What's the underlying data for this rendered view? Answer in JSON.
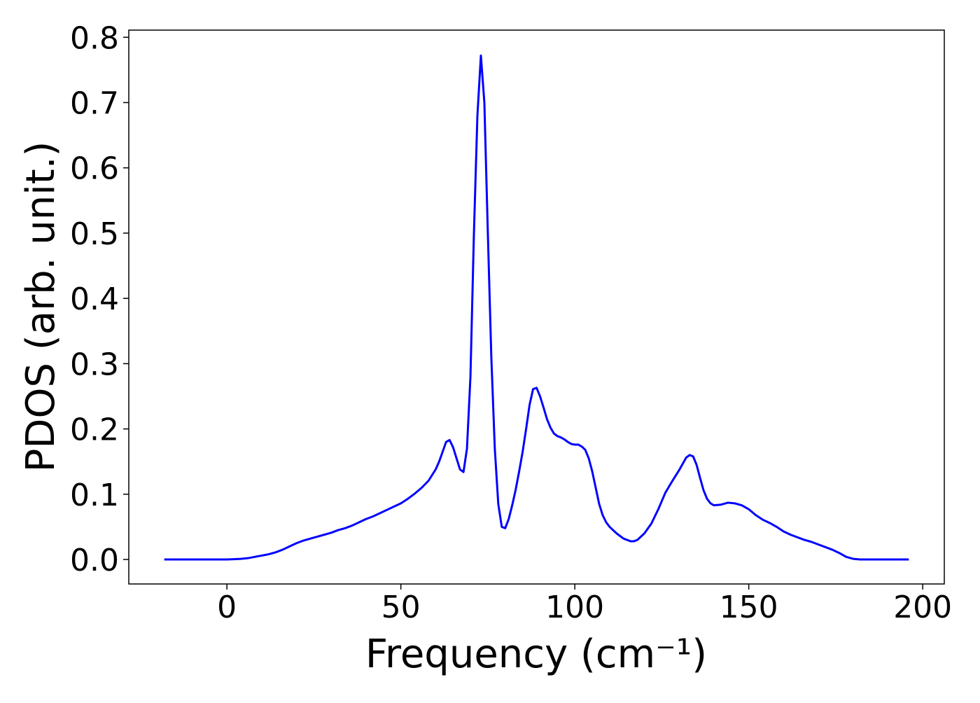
{
  "chart_data": {
    "type": "line",
    "xlabel": "Frequency (cm⁻¹)",
    "ylabel": "PDOS (arb. unit.)",
    "xlim": [
      -28.2,
      206.2
    ],
    "ylim": [
      -0.0375,
      0.811
    ],
    "xticks": [
      0,
      50,
      100,
      150,
      200
    ],
    "yticks": [
      {
        "value": 0,
        "label": "0.0"
      },
      0.1,
      0.2,
      0.3,
      0.4,
      0.5,
      0.6,
      0.7,
      0.8
    ],
    "grid": false,
    "x": [
      -18,
      -14,
      -10,
      -6,
      -2,
      0,
      2,
      4,
      6,
      8,
      10,
      12,
      14,
      16,
      18,
      20,
      22,
      24,
      26,
      28,
      30,
      32,
      34,
      36,
      38,
      40,
      42,
      44,
      46,
      48,
      50,
      52,
      54,
      56,
      58,
      60,
      61,
      62,
      63,
      64,
      65,
      66,
      67,
      68,
      69,
      70,
      71,
      72,
      73,
      74,
      75,
      76,
      77,
      78,
      79,
      80,
      81,
      82,
      83,
      84,
      85,
      86,
      87,
      88,
      89,
      90,
      91,
      92,
      93,
      94,
      95,
      96,
      97,
      98,
      99,
      100,
      101,
      102,
      103,
      104,
      105,
      106,
      107,
      108,
      109,
      110,
      112,
      114,
      116,
      117,
      118,
      120,
      122,
      124,
      126,
      128,
      130,
      132,
      133,
      134,
      135,
      136,
      137,
      138,
      139,
      140,
      142,
      144,
      146,
      148,
      150,
      152,
      154,
      156,
      158,
      160,
      162,
      164,
      166,
      168,
      170,
      172,
      174,
      176,
      178,
      180,
      182,
      186,
      190,
      196
    ],
    "series": [
      {
        "name": "PDOS",
        "color": "#0000ff",
        "values": [
          0,
          0,
          0,
          0,
          0,
          0,
          0.0005,
          0.001,
          0.002,
          0.004,
          0.006,
          0.008,
          0.011,
          0.015,
          0.02,
          0.025,
          0.029,
          0.032,
          0.035,
          0.038,
          0.041,
          0.045,
          0.048,
          0.052,
          0.057,
          0.062,
          0.066,
          0.071,
          0.076,
          0.081,
          0.086,
          0.093,
          0.101,
          0.11,
          0.121,
          0.138,
          0.15,
          0.165,
          0.18,
          0.183,
          0.172,
          0.155,
          0.138,
          0.134,
          0.17,
          0.28,
          0.5,
          0.68,
          0.772,
          0.7,
          0.5,
          0.31,
          0.17,
          0.085,
          0.05,
          0.048,
          0.062,
          0.083,
          0.107,
          0.135,
          0.165,
          0.2,
          0.237,
          0.261,
          0.263,
          0.25,
          0.233,
          0.215,
          0.202,
          0.193,
          0.189,
          0.187,
          0.184,
          0.18,
          0.177,
          0.176,
          0.176,
          0.173,
          0.168,
          0.155,
          0.135,
          0.11,
          0.085,
          0.068,
          0.057,
          0.05,
          0.04,
          0.032,
          0.028,
          0.028,
          0.03,
          0.04,
          0.055,
          0.077,
          0.102,
          0.12,
          0.137,
          0.156,
          0.16,
          0.158,
          0.145,
          0.125,
          0.106,
          0.093,
          0.086,
          0.083,
          0.084,
          0.087,
          0.086,
          0.083,
          0.077,
          0.068,
          0.061,
          0.056,
          0.05,
          0.043,
          0.038,
          0.034,
          0.03,
          0.027,
          0.023,
          0.019,
          0.015,
          0.01,
          0.004,
          0.001,
          0,
          0,
          0,
          0
        ]
      }
    ]
  }
}
